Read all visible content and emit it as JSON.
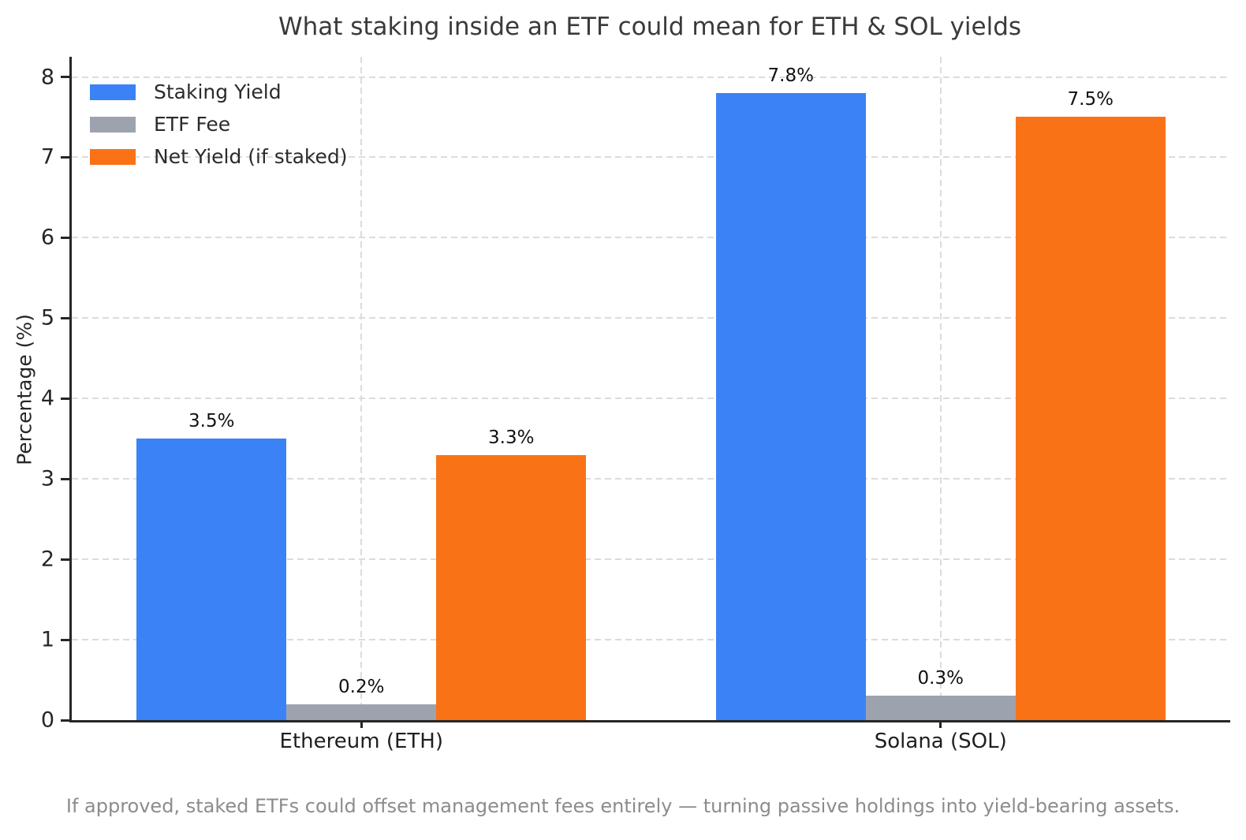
{
  "title": "What staking inside an ETF could mean for ETH & SOL yields",
  "caption": "If approved, staked ETFs could offset management fees entirely — turning passive holdings into yield-bearing assets.",
  "chart_data": {
    "type": "bar",
    "title": "What staking inside an ETF could mean for ETH & SOL yields",
    "categories": [
      "Ethereum (ETH)",
      "Solana (SOL)"
    ],
    "series": [
      {
        "name": "Staking Yield",
        "color": "#3b82f6",
        "values": [
          3.5,
          7.8
        ],
        "labels": [
          "3.5%",
          "7.8%"
        ]
      },
      {
        "name": "ETF Fee",
        "color": "#9ca3af",
        "values": [
          0.2,
          0.3
        ],
        "labels": [
          "0.2%",
          "0.3%"
        ]
      },
      {
        "name": "Net Yield (if staked)",
        "color": "#f97316",
        "values": [
          3.3,
          7.5
        ],
        "labels": [
          "3.3%",
          "7.5%"
        ]
      }
    ],
    "xlabel": "",
    "ylabel": "Percentage (%)",
    "ylim": [
      0,
      8.25
    ],
    "yticks": [
      0,
      1,
      2,
      3,
      4,
      5,
      6,
      7,
      8
    ],
    "grid": true,
    "grid_style": "dashed",
    "legend_position": "upper left",
    "annotation": "If approved, staked ETFs could offset management fees entirely — turning passive holdings into yield-bearing assets."
  },
  "colors": {
    "axis": "#262626",
    "grid": "#dcdcdc",
    "title": "#3a3a3a",
    "caption": "#8c8c8c",
    "bar_label": "#111111",
    "background": "#ffffff"
  }
}
